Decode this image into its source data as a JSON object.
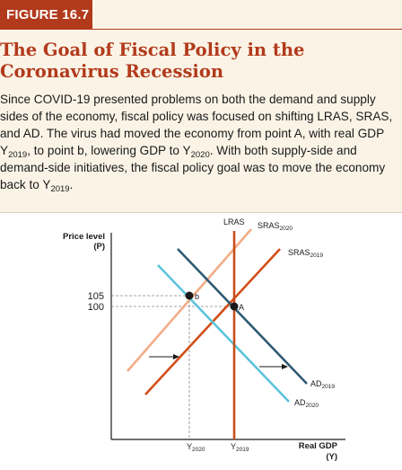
{
  "figure": {
    "label": "FIGURE 16.7",
    "title": "The Goal of Fiscal Policy in the Coronavirus Recession",
    "caption": [
      {
        "t": "Since COVID-19 presented problems on both the demand and supply sides of the economy, fiscal policy was focused on shifting LRAS, SRAS, and AD. The virus had moved the economy from point A, with real GDP Y"
      },
      {
        "t": "2019",
        "sub": true
      },
      {
        "t": ", to point b, lowering GDP to Y"
      },
      {
        "t": "2020",
        "sub": true
      },
      {
        "t": ". With both supply-side and demand-side initiatives, the fiscal policy goal was to move the economy back to Y"
      },
      {
        "t": "2019",
        "sub": true
      },
      {
        "t": "."
      }
    ]
  },
  "diagram": {
    "y_axis_label_1": "Price level",
    "y_axis_label_2": "(P)",
    "x_axis_label_1": "Real GDP",
    "x_axis_label_2": "(Y)",
    "price_ticks": [
      "105",
      "100"
    ],
    "x_ticks": [
      {
        "base": "Y",
        "sub": "2020"
      },
      {
        "base": "Y",
        "sub": "2019"
      }
    ],
    "curves": {
      "lras": {
        "label": "LRAS",
        "color": "#c84d1c"
      },
      "sras2020": {
        "base": "SRAS",
        "sub": "2020",
        "color": "#f2ad86"
      },
      "sras2019": {
        "base": "SRAS",
        "sub": "2019",
        "color": "#d24e18"
      },
      "ad2020": {
        "base": "AD",
        "sub": "2020",
        "color": "#5cc4db"
      },
      "ad2019": {
        "base": "AD",
        "sub": "2019",
        "color": "#2e5a72"
      }
    },
    "points": [
      {
        "label": "A"
      },
      {
        "label": "b"
      }
    ]
  }
}
